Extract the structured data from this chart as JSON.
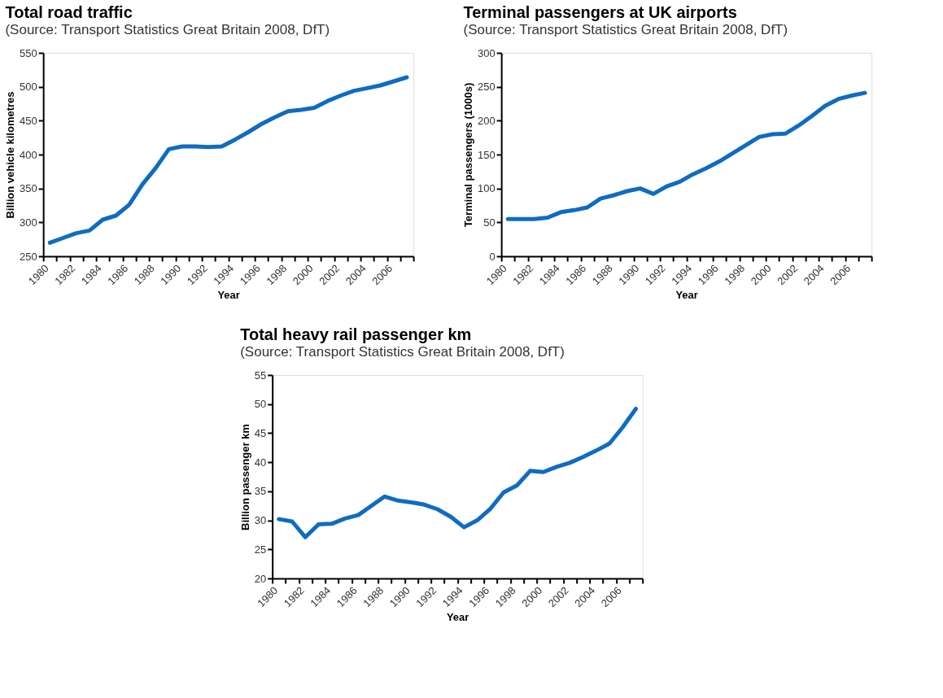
{
  "chart_data": [
    {
      "type": "line",
      "title": "Total road traffic",
      "subtitle": "(Source: Transport Statistics Great Britain 2008, DfT)",
      "xlabel": "Year",
      "ylabel": "Billion vehicle kilometres",
      "x": [
        1980.5,
        1981.5,
        1982.5,
        1983.5,
        1984.5,
        1985.5,
        1986.5,
        1987.5,
        1988.5,
        1989.5,
        1990.5,
        1991.5,
        1992.5,
        1993.5,
        1994.5,
        1995.5,
        1996.5,
        1997.5,
        1998.5,
        1999.5,
        2000.5,
        2001.5,
        2002.5,
        2003.5,
        2004.5,
        2005.5,
        2006.5,
        2007.5
      ],
      "series": [
        {
          "color": "#0f6cc0",
          "values": [
            270,
            277,
            284,
            288,
            304,
            310,
            326,
            356,
            380,
            408,
            412,
            412,
            411,
            412,
            422,
            433,
            445,
            455,
            464,
            466,
            469,
            479,
            487,
            494,
            498,
            502,
            508,
            514
          ]
        }
      ],
      "xlim": [
        1980,
        2008
      ],
      "ylim": [
        250,
        550
      ],
      "yticks": [
        250,
        300,
        350,
        400,
        450,
        500,
        550
      ],
      "xticks": [
        1980,
        {
          "value": 1981,
          "label": null
        },
        1982,
        {
          "value": 1983,
          "label": null
        },
        1984,
        {
          "value": 1985,
          "label": null
        },
        1986,
        {
          "value": 1987,
          "label": null
        },
        1988,
        {
          "value": 1989,
          "label": null
        },
        1990,
        {
          "value": 1991,
          "label": null
        },
        1992,
        {
          "value": 1993,
          "label": null
        },
        1994,
        {
          "value": 1995,
          "label": null
        },
        1996,
        {
          "value": 1997,
          "label": null
        },
        1998,
        {
          "value": 1999,
          "label": null
        },
        2000,
        {
          "value": 2001,
          "label": null
        },
        2002,
        {
          "value": 2003,
          "label": null
        },
        2004,
        {
          "value": 2005,
          "label": null
        },
        2006,
        {
          "value": 2007,
          "label": null
        },
        {
          "value": 2008,
          "label": null
        }
      ],
      "grid": false,
      "legend": false,
      "line_style": "solid"
    },
    {
      "type": "line",
      "title": "Terminal passengers at UK airports",
      "subtitle": "(Source: Transport Statistics Great Britain 2008, DfT)",
      "xlabel": "Year",
      "ylabel": "Terminal passengers (1000s)",
      "x": [
        1980.5,
        1981.5,
        1982.5,
        1983.5,
        1984.5,
        1985.5,
        1986.5,
        1987.5,
        1988.5,
        1989.5,
        1990.5,
        1991.5,
        1992.5,
        1993.5,
        1994.5,
        1995.5,
        1996.5,
        1997.5,
        1998.5,
        1999.5,
        2000.5,
        2001.5,
        2002.5,
        2003.5,
        2004.5,
        2005.5,
        2006.5,
        2007.5
      ],
      "series": [
        {
          "color": "#0f6cc0",
          "values": [
            55,
            55,
            55,
            57,
            65,
            68,
            72,
            85,
            90,
            96,
            100,
            92,
            103,
            110,
            121,
            130,
            140,
            152,
            164,
            176,
            180,
            181,
            193,
            207,
            222,
            232,
            237,
            241
          ]
        }
      ],
      "xlim": [
        1980,
        2008
      ],
      "ylim": [
        0,
        300
      ],
      "yticks": [
        0,
        50,
        100,
        150,
        200,
        250,
        300
      ],
      "xticks": [
        1980,
        {
          "value": 1981,
          "label": null
        },
        1982,
        {
          "value": 1983,
          "label": null
        },
        1984,
        {
          "value": 1985,
          "label": null
        },
        1986,
        {
          "value": 1987,
          "label": null
        },
        1988,
        {
          "value": 1989,
          "label": null
        },
        1990,
        {
          "value": 1991,
          "label": null
        },
        1992,
        {
          "value": 1993,
          "label": null
        },
        1994,
        {
          "value": 1995,
          "label": null
        },
        1996,
        {
          "value": 1997,
          "label": null
        },
        1998,
        {
          "value": 1999,
          "label": null
        },
        2000,
        {
          "value": 2001,
          "label": null
        },
        2002,
        {
          "value": 2003,
          "label": null
        },
        2004,
        {
          "value": 2005,
          "label": null
        },
        2006,
        {
          "value": 2007,
          "label": null
        },
        {
          "value": 2008,
          "label": null
        }
      ],
      "grid": false,
      "legend": false,
      "line_style": "solid"
    },
    {
      "type": "line",
      "title": "Total heavy rail passenger km",
      "subtitle": "(Source: Transport Statistics Great Britain 2008, DfT)",
      "xlabel": "Year",
      "ylabel": "Billion passenger km",
      "x": [
        1980.5,
        1981.5,
        1982.5,
        1983.5,
        1984.5,
        1985.5,
        1986.5,
        1987.5,
        1988.5,
        1989.5,
        1990.5,
        1991.5,
        1992.5,
        1993.5,
        1994.5,
        1995.5,
        1996.5,
        1997.5,
        1998.5,
        1999.5,
        2000.5,
        2001.5,
        2002.5,
        2003.5,
        2004.5,
        2005.5,
        2006.5,
        2007.5
      ],
      "series": [
        {
          "color": "#0f6cc0",
          "values": [
            30.2,
            29.8,
            27.1,
            29.3,
            29.4,
            30.3,
            30.9,
            32.5,
            34.1,
            33.4,
            33.1,
            32.7,
            31.9,
            30.6,
            28.8,
            30.0,
            32.0,
            34.8,
            36.0,
            38.5,
            38.3,
            39.2,
            39.9,
            40.9,
            42.0,
            43.2,
            46.0,
            49.2
          ]
        }
      ],
      "xlim": [
        1980,
        2008
      ],
      "ylim": [
        20,
        55
      ],
      "yticks": [
        20,
        25,
        30,
        35,
        40,
        45,
        50,
        55
      ],
      "xticks": [
        1980,
        {
          "value": 1981,
          "label": null
        },
        1982,
        {
          "value": 1983,
          "label": null
        },
        1984,
        {
          "value": 1985,
          "label": null
        },
        1986,
        {
          "value": 1987,
          "label": null
        },
        1988,
        {
          "value": 1989,
          "label": null
        },
        1990,
        {
          "value": 1991,
          "label": null
        },
        1992,
        {
          "value": 1993,
          "label": null
        },
        1994,
        {
          "value": 1995,
          "label": null
        },
        1996,
        {
          "value": 1997,
          "label": null
        },
        1998,
        {
          "value": 1999,
          "label": null
        },
        2000,
        {
          "value": 2001,
          "label": null
        },
        2002,
        {
          "value": 2003,
          "label": null
        },
        2004,
        {
          "value": 2005,
          "label": null
        },
        2006,
        {
          "value": 2007,
          "label": null
        },
        {
          "value": 2008,
          "label": null
        }
      ],
      "grid": false,
      "legend": false,
      "line_style": "solid"
    }
  ]
}
